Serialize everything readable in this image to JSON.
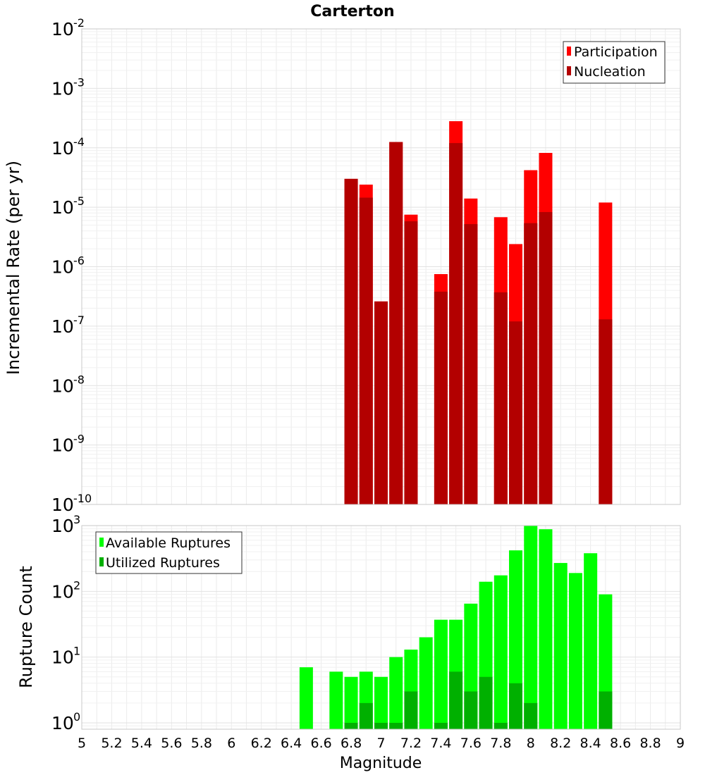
{
  "chart_data": [
    {
      "type": "bar",
      "title": "Carterton",
      "xlabel": "",
      "ylabel": "Incremental Rate (per yr)",
      "yscale": "log",
      "ylim": [
        1e-10,
        0.01
      ],
      "xlim": [
        5,
        9
      ],
      "grid": true,
      "legend_position": "top-right",
      "y_ticks": [
        {
          "base": "10",
          "exp": "-10",
          "value": 1e-10
        },
        {
          "base": "10",
          "exp": "-9",
          "value": 1e-09
        },
        {
          "base": "10",
          "exp": "-8",
          "value": 1e-08
        },
        {
          "base": "10",
          "exp": "-7",
          "value": 1e-07
        },
        {
          "base": "10",
          "exp": "-6",
          "value": 1e-06
        },
        {
          "base": "10",
          "exp": "-5",
          "value": 1e-05
        },
        {
          "base": "10",
          "exp": "-4",
          "value": 0.0001
        },
        {
          "base": "10",
          "exp": "-3",
          "value": 0.001
        },
        {
          "base": "10",
          "exp": "-2",
          "value": 0.01
        }
      ],
      "x": [
        6.8,
        6.9,
        7.0,
        7.1,
        7.2,
        7.4,
        7.5,
        7.6,
        7.8,
        7.9,
        8.0,
        8.1,
        8.5
      ],
      "series": [
        {
          "name": "Participation",
          "color": "#ff0000",
          "values": [
            3e-05,
            2.4e-05,
            2.6e-07,
            0.000125,
            7.5e-06,
            7.5e-07,
            0.00028,
            1.4e-05,
            6.8e-06,
            2.4e-06,
            4.2e-05,
            8.2e-05,
            1.2e-05
          ]
        },
        {
          "name": "Nucleation",
          "color": "#b30000",
          "values": [
            3e-05,
            1.45e-05,
            2.6e-07,
            0.000125,
            5.8e-06,
            3.8e-07,
            0.00012,
            5.2e-06,
            3.7e-07,
            1.2e-07,
            5.4e-06,
            8.3e-06,
            1.3e-07
          ]
        }
      ]
    },
    {
      "type": "bar",
      "title": "",
      "xlabel": "Magnitude",
      "ylabel": "Rupture Count",
      "yscale": "log",
      "ylim": [
        0.8,
        1000
      ],
      "xlim": [
        5,
        9
      ],
      "grid": true,
      "legend_position": "top-left",
      "x_ticks": [
        "5",
        "5.2",
        "5.4",
        "5.6",
        "5.8",
        "6",
        "6.2",
        "6.4",
        "6.6",
        "6.8",
        "7",
        "7.2",
        "7.4",
        "7.6",
        "7.8",
        "8",
        "8.2",
        "8.4",
        "8.6",
        "8.8",
        "9"
      ],
      "y_ticks": [
        {
          "base": "10",
          "exp": "0",
          "value": 1
        },
        {
          "base": "10",
          "exp": "1",
          "value": 10
        },
        {
          "base": "10",
          "exp": "2",
          "value": 100
        },
        {
          "base": "10",
          "exp": "3",
          "value": 1000
        }
      ],
      "x": [
        6.5,
        6.7,
        6.8,
        6.9,
        7.0,
        7.1,
        7.2,
        7.3,
        7.4,
        7.5,
        7.6,
        7.7,
        7.8,
        7.9,
        8.0,
        8.1,
        8.2,
        8.3,
        8.4,
        8.5
      ],
      "series": [
        {
          "name": "Available Ruptures",
          "color": "#00ff00",
          "values": [
            7,
            6,
            5,
            6,
            5,
            10,
            13,
            20,
            37,
            37,
            65,
            140,
            175,
            420,
            1000,
            880,
            270,
            190,
            380,
            90
          ]
        },
        {
          "name": "Utilized Ruptures",
          "color": "#00b000",
          "values": [
            null,
            null,
            1,
            2,
            1,
            1,
            3,
            null,
            1,
            6,
            3,
            5,
            1,
            4,
            2,
            null,
            null,
            null,
            null,
            3
          ]
        }
      ]
    }
  ]
}
